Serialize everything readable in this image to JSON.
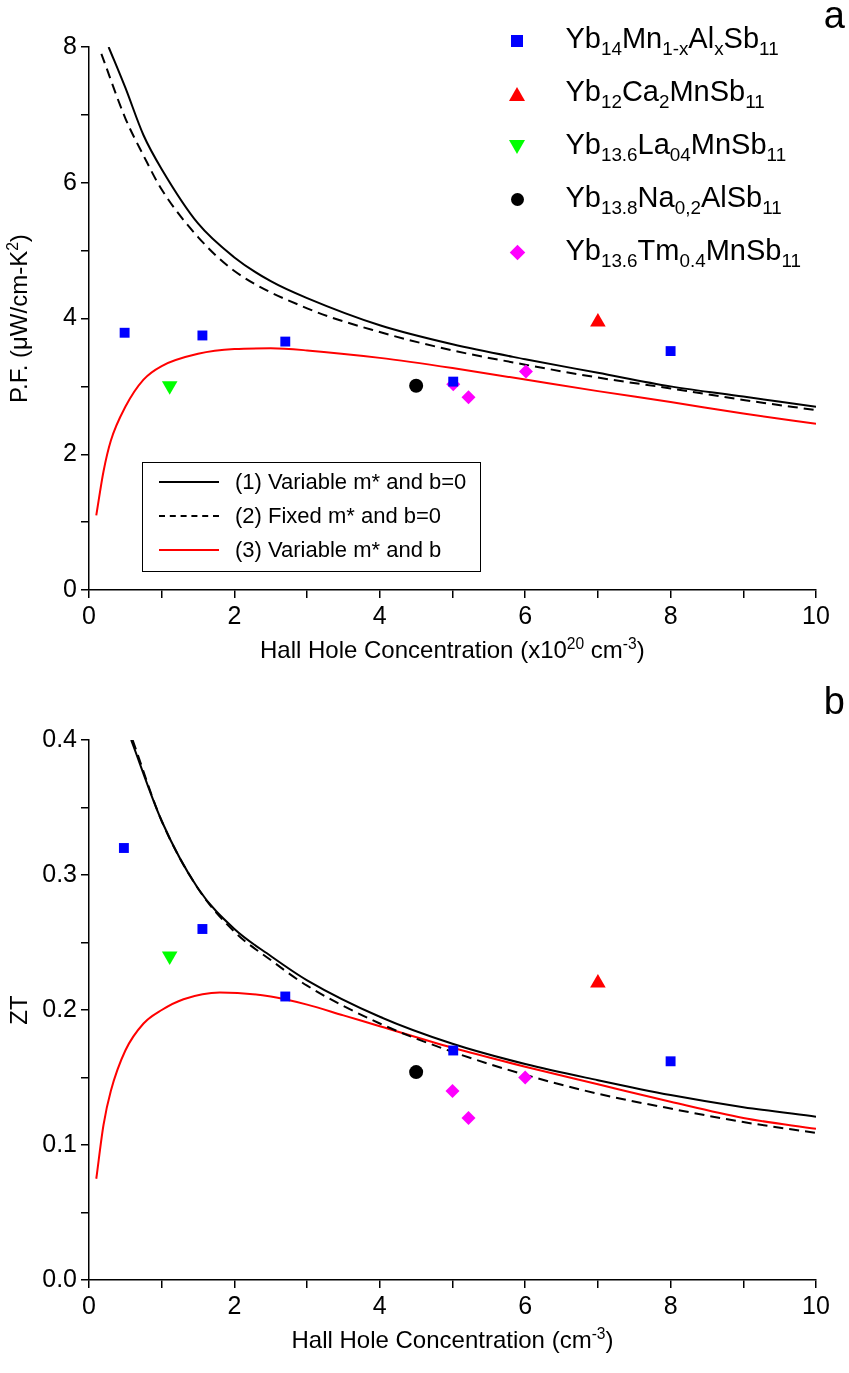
{
  "chart_data": [
    {
      "type": "scatter",
      "annotations": [
        "a"
      ],
      "xlabel": "Hall Hole Concentration (x10$^{20}$ cm$^{-3}$)",
      "ylabel": "P.F. (μW/cm-K$^{2}$)",
      "xlim": [
        0,
        10
      ],
      "xticks": [
        0,
        {
          "value": 1,
          "label": null
        },
        2,
        {
          "value": 3,
          "label": null
        },
        4,
        {
          "value": 5,
          "label": null
        },
        6,
        {
          "value": 7,
          "label": null
        },
        8,
        {
          "value": 9,
          "label": null
        },
        10
      ],
      "ylim": [
        0,
        8
      ],
      "yticks": [
        0,
        {
          "value": 1,
          "label": null
        },
        2,
        {
          "value": 3,
          "label": null
        },
        4,
        {
          "value": 5,
          "label": null
        },
        6,
        {
          "value": 7,
          "label": null
        },
        8
      ],
      "legend": "top right",
      "series": [
        {
          "name": "Yb$_{14}$Mn$_{1-x}$Al$_{x}$Sb$_{11}$",
          "color": "#0000ff",
          "marker": "square",
          "x": [
            0.49,
            1.56,
            2.7,
            5.01,
            8.0
          ],
          "values": [
            3.79,
            3.75,
            3.66,
            3.07,
            3.52
          ]
        },
        {
          "name": "Yb$_{12}$Ca$_{2}$MnSb$_{11}$",
          "color": "#ff0000",
          "marker": "triangle",
          "x": [
            7.0
          ],
          "values": [
            3.95
          ]
        },
        {
          "name": "Yb$_{13.6}$La$_{04}$MnSb$_{11}$",
          "color": "#00ff00",
          "marker": "triangle-down",
          "x": [
            1.11
          ],
          "values": [
            3.01
          ]
        },
        {
          "name": "Yb$_{13.8}$Na$_{0,2}$AlSb$_{11}$",
          "color": "#000000",
          "marker": "circle",
          "x": [
            4.5
          ],
          "values": [
            3.01
          ]
        },
        {
          "name": "Yb$_{13.6}$Tm$_{0.4}$MnSb$_{11}$",
          "color": "#ff00ff",
          "marker": "diamond",
          "x": [
            5.01,
            5.22,
            6.01
          ],
          "values": [
            3.03,
            2.84,
            3.22
          ]
        },
        {
          "name": "(1) Variable m* and b=0",
          "type": "line",
          "color": "#000000",
          "line_style": "solid",
          "x": [
            0.27,
            0.5,
            0.75,
            1,
            1.5,
            2,
            2.5,
            3,
            4,
            5,
            6,
            7,
            8,
            9,
            10
          ],
          "values": [
            8.0,
            7.4,
            6.7,
            6.2,
            5.4,
            4.9,
            4.55,
            4.3,
            3.9,
            3.62,
            3.4,
            3.2,
            3.0,
            2.85,
            2.7
          ]
        },
        {
          "name": "(2) Fixed m* and b=0",
          "type": "line",
          "color": "#000000",
          "line_style": "dashed",
          "x": [
            0.17,
            0.5,
            0.75,
            1,
            1.5,
            2,
            3,
            4,
            5,
            6,
            7,
            8,
            9,
            10
          ],
          "values": [
            7.9,
            6.95,
            6.4,
            5.9,
            5.2,
            4.7,
            4.15,
            3.8,
            3.53,
            3.32,
            3.13,
            2.97,
            2.8,
            2.65
          ]
        },
        {
          "name": "(3) Variable m* and b",
          "type": "line",
          "color": "#ff0000",
          "line_style": "solid",
          "x": [
            0.1,
            0.2,
            0.3,
            0.5,
            0.75,
            1,
            1.5,
            2,
            2.5,
            3,
            4,
            5,
            6,
            7,
            8,
            9,
            10
          ],
          "values": [
            1.1,
            1.75,
            2.2,
            2.7,
            3.1,
            3.3,
            3.48,
            3.55,
            3.56,
            3.53,
            3.42,
            3.27,
            3.1,
            2.93,
            2.77,
            2.6,
            2.45
          ]
        }
      ]
    },
    {
      "type": "scatter",
      "annotations": [
        "b"
      ],
      "xlabel": "Hall Hole Concentration (cm$^{-3}$)",
      "ylabel": "ZT",
      "xlim": [
        0,
        10
      ],
      "xticks": [
        0,
        {
          "value": 1,
          "label": null
        },
        2,
        {
          "value": 3,
          "label": null
        },
        4,
        {
          "value": 5,
          "label": null
        },
        6,
        {
          "value": 7,
          "label": null
        },
        8,
        {
          "value": 9,
          "label": null
        },
        10
      ],
      "ylim": [
        0,
        0.4
      ],
      "yticks": [
        {
          "value": 0,
          "label": "0.0"
        },
        {
          "value": 0.05,
          "label": null
        },
        0.1,
        {
          "value": 0.15,
          "label": null
        },
        0.2,
        {
          "value": 0.25,
          "label": null
        },
        0.3,
        {
          "value": 0.35,
          "label": null
        },
        0.4
      ],
      "series": [
        {
          "color": "#0000ff",
          "marker": "square",
          "x": [
            0.48,
            1.56,
            2.7,
            5.01,
            8.0
          ],
          "values": [
            0.32,
            0.26,
            0.21,
            0.17,
            0.162
          ]
        },
        {
          "color": "#ff0000",
          "marker": "triangle",
          "x": [
            7.0
          ],
          "values": [
            0.22
          ]
        },
        {
          "color": "#00ff00",
          "marker": "triangle-down",
          "x": [
            1.11
          ],
          "values": [
            0.24
          ]
        },
        {
          "color": "#000000",
          "marker": "circle",
          "x": [
            4.5
          ],
          "values": [
            0.154
          ]
        },
        {
          "color": "#ff00ff",
          "marker": "diamond",
          "x": [
            5.0,
            5.22,
            6.0
          ],
          "values": [
            0.14,
            0.12,
            0.15
          ]
        },
        {
          "type": "line",
          "color": "#000000",
          "line_style": "solid",
          "x": [
            0.58,
            1,
            1.5,
            2,
            2.5,
            3,
            4,
            5,
            6,
            7,
            8,
            9,
            10
          ],
          "values": [
            0.4,
            0.34,
            0.29,
            0.26,
            0.24,
            0.222,
            0.195,
            0.175,
            0.16,
            0.148,
            0.137,
            0.128,
            0.121
          ]
        },
        {
          "type": "line",
          "color": "#000000",
          "line_style": "dashed",
          "x": [
            0.6,
            1,
            1.5,
            2,
            2.5,
            3,
            4,
            5,
            6,
            7,
            8,
            9,
            10
          ],
          "values": [
            0.4,
            0.34,
            0.29,
            0.258,
            0.237,
            0.218,
            0.19,
            0.169,
            0.152,
            0.138,
            0.127,
            0.117,
            0.109
          ]
        },
        {
          "type": "line",
          "color": "#ff0000",
          "line_style": "solid",
          "x": [
            0.1,
            0.2,
            0.3,
            0.5,
            0.75,
            1,
            1.3,
            1.8,
            2.5,
            3,
            3.5,
            4,
            5,
            6,
            7,
            8,
            9,
            10
          ],
          "values": [
            0.075,
            0.115,
            0.14,
            0.17,
            0.19,
            0.2,
            0.208,
            0.213,
            0.21,
            0.204,
            0.196,
            0.188,
            0.172,
            0.158,
            0.145,
            0.132,
            0.12,
            0.112
          ]
        }
      ]
    }
  ]
}
